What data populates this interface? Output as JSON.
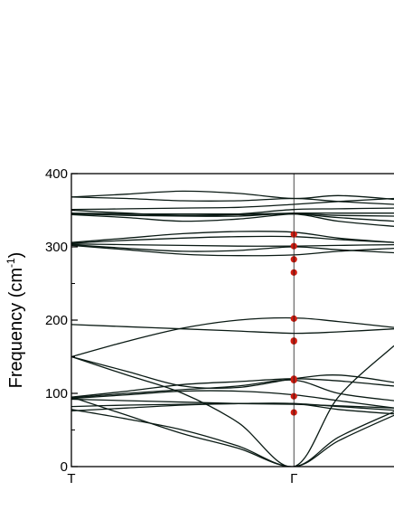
{
  "chart_data": {
    "type": "line",
    "title": "",
    "xlabel": "",
    "ylabel": "Frequency (cm",
    "ylabel_superscript": "-1",
    "ylabel_close": ")",
    "ylim": [
      0,
      400
    ],
    "y_ticks": [
      0,
      100,
      200,
      300,
      400
    ],
    "y_minor_ticks": [
      50,
      150,
      250,
      350
    ],
    "xlim": [
      0,
      1.45
    ],
    "x_tick_labels": [
      {
        "pos": 0,
        "label": "T"
      },
      {
        "pos": 1,
        "label": "Γ"
      }
    ],
    "grid": false,
    "legend": "none",
    "colors": {
      "bands": "#0a1a14",
      "markers": "#d01c10",
      "frame": "#000000"
    },
    "series": [
      {
        "x": [
          0,
          0.25,
          0.5,
          0.75,
          1,
          1.2,
          1.45
        ],
        "y": [
          368,
          372,
          376,
          373,
          366,
          370,
          365
        ]
      },
      {
        "x": [
          0,
          0.25,
          0.5,
          0.75,
          1,
          1.2,
          1.45
        ],
        "y": [
          368,
          366,
          363,
          363,
          366,
          362,
          358
        ]
      },
      {
        "x": [
          0,
          0.25,
          0.5,
          0.75,
          1,
          1.2,
          1.45
        ],
        "y": [
          351,
          352,
          353,
          354,
          358,
          362,
          366
        ]
      },
      {
        "x": [
          0,
          0.25,
          0.5,
          0.75,
          1,
          1.2,
          1.45
        ],
        "y": [
          350,
          346,
          343,
          345,
          351,
          352,
          353
        ]
      },
      {
        "x": [
          0,
          0.25,
          0.5,
          0.75,
          1,
          1.2,
          1.45
        ],
        "y": [
          346,
          345,
          343,
          344,
          346,
          346,
          346
        ]
      },
      {
        "x": [
          0,
          0.25,
          0.5,
          0.75,
          1,
          1.2,
          1.45
        ],
        "y": [
          344,
          340,
          335,
          338,
          345,
          343,
          342
        ]
      },
      {
        "x": [
          0,
          0.25,
          0.5,
          0.75,
          1,
          1.2,
          1.45
        ],
        "y": [
          345,
          345,
          345,
          345,
          345,
          340,
          335
        ]
      },
      {
        "x": [
          0,
          0.25,
          0.5,
          0.75,
          1,
          1.2,
          1.45
        ],
        "y": [
          345,
          343,
          342,
          342,
          345,
          335,
          328
        ]
      },
      {
        "x": [
          0,
          0.25,
          0.5,
          0.75,
          1,
          1.2,
          1.45
        ],
        "y": [
          306,
          312,
          318,
          321,
          320,
          312,
          306
        ]
      },
      {
        "x": [
          0,
          0.25,
          0.5,
          0.75,
          1,
          1.2,
          1.45
        ],
        "y": [
          305,
          309,
          312,
          314,
          314,
          310,
          306
        ]
      },
      {
        "x": [
          0,
          0.25,
          0.5,
          0.75,
          1,
          1.2,
          1.45
        ],
        "y": [
          304,
          303,
          302,
          301,
          301,
          302,
          303
        ]
      },
      {
        "x": [
          0,
          0.25,
          0.5,
          0.75,
          1,
          1.2,
          1.45
        ],
        "y": [
          303,
          298,
          294,
          295,
          300,
          296,
          292
        ]
      },
      {
        "x": [
          0,
          0.25,
          0.5,
          0.75,
          1,
          1.2,
          1.45
        ],
        "y": [
          302,
          296,
          290,
          288,
          289,
          294,
          298
        ]
      },
      {
        "x": [
          0,
          0.25,
          0.5,
          0.75,
          1,
          1.2,
          1.45
        ],
        "y": [
          194,
          191,
          188,
          185,
          182,
          184,
          188
        ]
      },
      {
        "x": [
          0,
          0.25,
          0.5,
          0.75,
          1,
          1.2,
          1.45
        ],
        "y": [
          150,
          171,
          189,
          200,
          203,
          198,
          190
        ]
      },
      {
        "x": [
          0,
          0.25,
          0.5,
          0.75,
          1,
          1.2,
          1.45
        ],
        "y": [
          150,
          125,
          100,
          60,
          0,
          95,
          165
        ]
      },
      {
        "x": [
          0,
          0.25,
          0.5,
          0.75,
          1,
          1.2,
          1.45
        ],
        "y": [
          150,
          130,
          110,
          108,
          120,
          125,
          115
        ]
      },
      {
        "x": [
          0,
          0.25,
          0.5,
          0.75,
          1,
          1.2,
          1.45
        ],
        "y": [
          95,
          103,
          112,
          116,
          120,
          117,
          110
        ]
      },
      {
        "x": [
          0,
          0.25,
          0.5,
          0.75,
          1,
          1.2,
          1.45
        ],
        "y": [
          94,
          100,
          105,
          110,
          118,
          100,
          90
        ]
      },
      {
        "x": [
          0,
          0.25,
          0.5,
          0.75,
          1,
          1.2,
          1.45
        ],
        "y": [
          93,
          98,
          103,
          103,
          98,
          90,
          80
        ]
      },
      {
        "x": [
          0,
          0.25,
          0.5,
          0.75,
          1,
          1.2,
          1.45
        ],
        "y": [
          92,
          90,
          88,
          86,
          85,
          83,
          80
        ]
      },
      {
        "x": [
          0,
          0.25,
          0.5,
          0.75,
          1,
          1.2,
          1.45
        ],
        "y": [
          82,
          84,
          85,
          86,
          86,
          82,
          77
        ]
      },
      {
        "x": [
          0,
          0.25,
          0.5,
          0.75,
          1,
          1.2,
          1.45
        ],
        "y": [
          78,
          65,
          50,
          28,
          0,
          40,
          75
        ]
      },
      {
        "x": [
          0,
          0.25,
          0.5,
          0.75,
          1,
          1.2,
          1.45
        ],
        "y": [
          95,
          70,
          45,
          25,
          0,
          35,
          70
        ]
      },
      {
        "x": [
          0,
          0.25,
          0.5,
          0.75,
          1,
          1.2,
          1.45
        ],
        "y": [
          76,
          80,
          84,
          86,
          86,
          78,
          72
        ]
      }
    ],
    "markers": {
      "x": 1,
      "y": [
        74,
        96,
        118,
        120,
        171,
        172,
        202,
        265,
        283,
        301,
        317
      ]
    }
  }
}
